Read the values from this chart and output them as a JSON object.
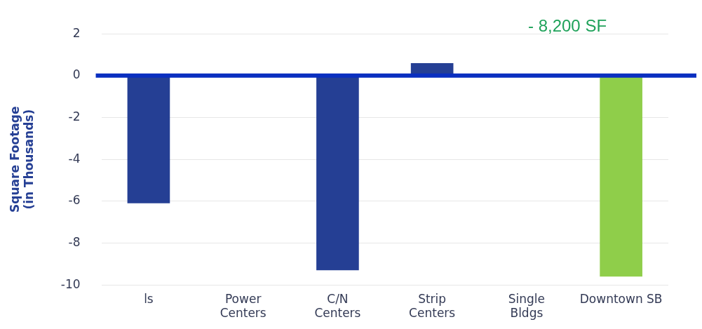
{
  "chart_data": {
    "type": "bar",
    "ylabel": "Square Footage\n(in Thousands)",
    "categories": [
      "ls",
      "Power\nCenters",
      "C/N\nCenters",
      "Strip\nCenters",
      "Single\nBldgs",
      "Downtown SB"
    ],
    "values": [
      -6.1,
      0,
      -9.3,
      0.6,
      0,
      -9.6
    ],
    "colors": [
      "#253f94",
      "#253f94",
      "#253f94",
      "#253f94",
      "#253f94",
      "#8fce4a"
    ],
    "ylim": [
      -10,
      2
    ],
    "yticks": [
      -10,
      -8,
      -6,
      -4,
      -2,
      0,
      2
    ],
    "grid": "y",
    "ref_lines": [
      {
        "axis": "y",
        "value": 0,
        "color": "#0a2fc0"
      }
    ],
    "annotations": [
      "- 8,200 SF"
    ]
  }
}
